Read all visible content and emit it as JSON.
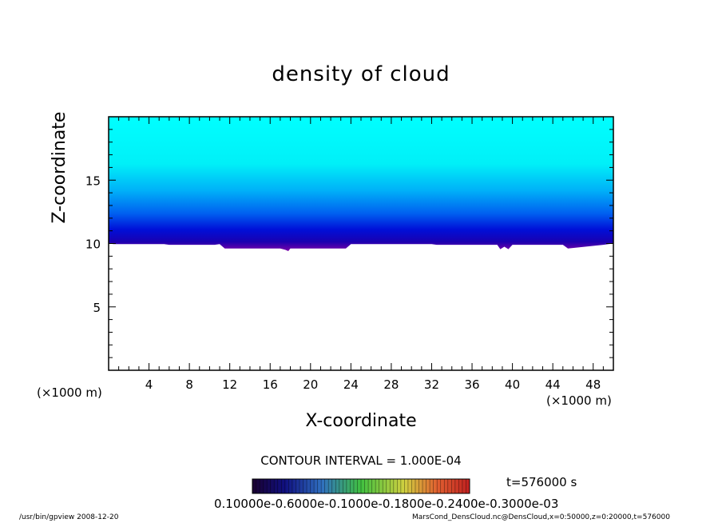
{
  "chart_data": {
    "type": "heatmap",
    "title": "density of cloud",
    "xlabel": "X-coordinate",
    "ylabel": "Z-coordinate",
    "x_unit_left": "(×1000 m)",
    "x_unit_right": "(×1000 m)",
    "xlim": [
      0,
      50
    ],
    "ylim": [
      0,
      20
    ],
    "x_ticks": [
      4,
      8,
      12,
      16,
      20,
      24,
      28,
      32,
      36,
      40,
      44,
      48
    ],
    "y_ticks": [
      5,
      10,
      15
    ],
    "cloud_base": {
      "x": [
        0,
        0.5,
        5.5,
        6,
        10.5,
        11,
        11.5,
        17,
        17.5,
        17.8,
        18,
        23.5,
        24,
        32,
        32.5,
        38.5,
        38.8,
        39.2,
        39.6,
        40,
        45,
        45.5,
        49,
        49.5,
        50
      ],
      "z": [
        10,
        9.95,
        9.95,
        9.9,
        9.9,
        9.95,
        9.6,
        9.6,
        9.5,
        9.4,
        9.6,
        9.6,
        9.95,
        9.95,
        9.9,
        9.9,
        9.55,
        9.75,
        9.55,
        9.9,
        9.9,
        9.6,
        9.9,
        9.95,
        10
      ]
    },
    "color_scale": [
      "#7b00a8",
      "#1a00b0",
      "#0010d8",
      "#0060f0",
      "#00b0f8",
      "#00f0f8",
      "#00ffff"
    ],
    "contour_interval": "CONTOUR INTERVAL = 1.000E-04",
    "time_label": "t=576000 s",
    "colorbar_labels": "0.10000e-0.6000e-0.1000e-0.1800e-0.2400e-0.3000e-03"
  },
  "footer": {
    "left": "/usr/bin/gpview   2008-12-20",
    "right": "MarsCond_DensCloud.nc@DensCloud,x=0:50000,z=0:20000,t=576000"
  }
}
